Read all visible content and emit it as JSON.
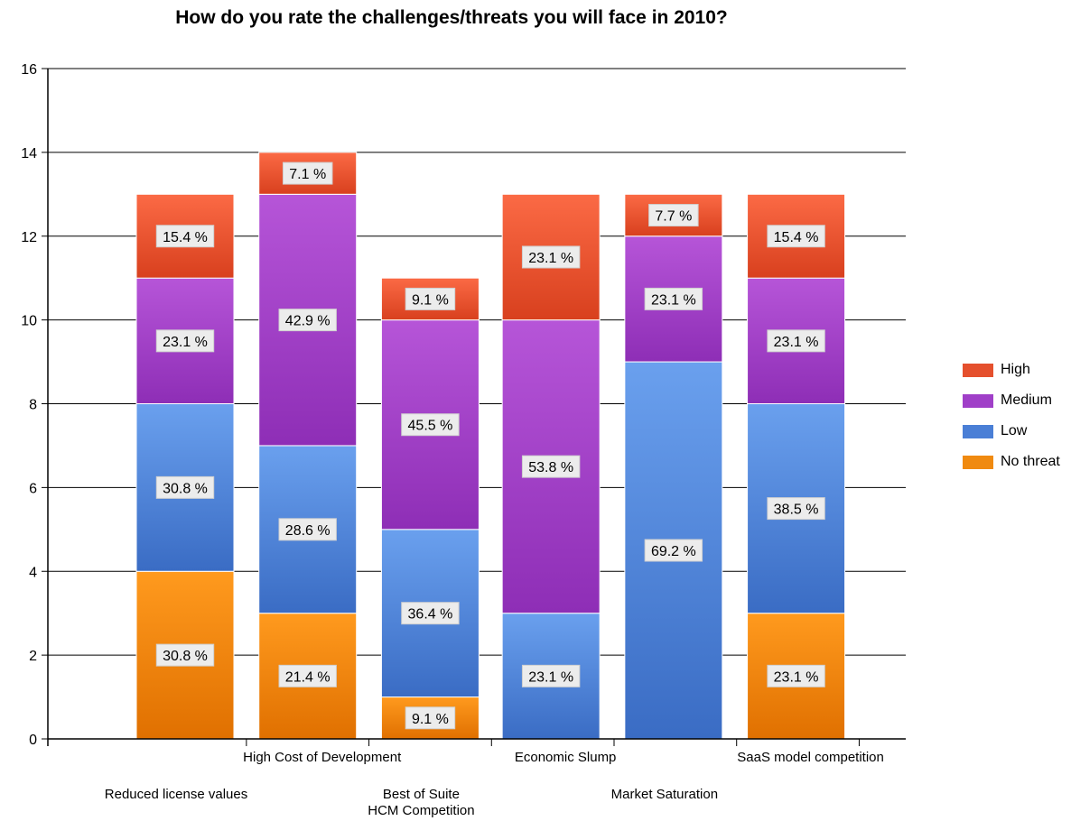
{
  "chart_data": {
    "type": "bar",
    "stacked": true,
    "title": "How do you rate the challenges/threats you will face in 2010?",
    "categories": [
      "Reduced license values",
      "High Cost of Development",
      "Best of Suite HCM Competition",
      "Economic Slump",
      "Market Saturation",
      "SaaS model competition"
    ],
    "ylim": [
      0,
      16
    ],
    "yticks": [
      "0",
      "2",
      "4",
      "6",
      "8",
      "10",
      "12",
      "14",
      "16"
    ],
    "grid": true,
    "legend_position": "right",
    "series": [
      {
        "name": "No threat",
        "color": "#f08a10",
        "values": [
          4,
          3,
          1,
          0,
          0,
          3
        ],
        "labels": [
          "30.8 %",
          "21.4 %",
          "9.1 %",
          "",
          "",
          "23.1 %"
        ]
      },
      {
        "name": "Low",
        "color": "#4a7fd6",
        "values": [
          4,
          4,
          4,
          3,
          9,
          5
        ],
        "labels": [
          "30.8 %",
          "28.6 %",
          "36.4 %",
          "23.1 %",
          "69.2 %",
          "38.5 %"
        ]
      },
      {
        "name": "Medium",
        "color": "#a03fc8",
        "values": [
          3,
          6,
          5,
          7,
          3,
          3
        ],
        "labels": [
          "23.1 %",
          "42.9 %",
          "45.5 %",
          "53.8 %",
          "23.1 %",
          "23.1 %"
        ]
      },
      {
        "name": "High",
        "color": "#e5502d",
        "values": [
          2,
          1,
          1,
          3,
          1,
          2
        ],
        "labels": [
          "15.4 %",
          "7.1 %",
          "9.1 %",
          "23.1 %",
          "7.7 %",
          "15.4 %"
        ]
      }
    ]
  },
  "legend": {
    "items": [
      {
        "label": "High",
        "color": "#e5502d"
      },
      {
        "label": "Medium",
        "color": "#a03fc8"
      },
      {
        "label": "Low",
        "color": "#4a7fd6"
      },
      {
        "label": "No threat",
        "color": "#f08a10"
      }
    ]
  }
}
